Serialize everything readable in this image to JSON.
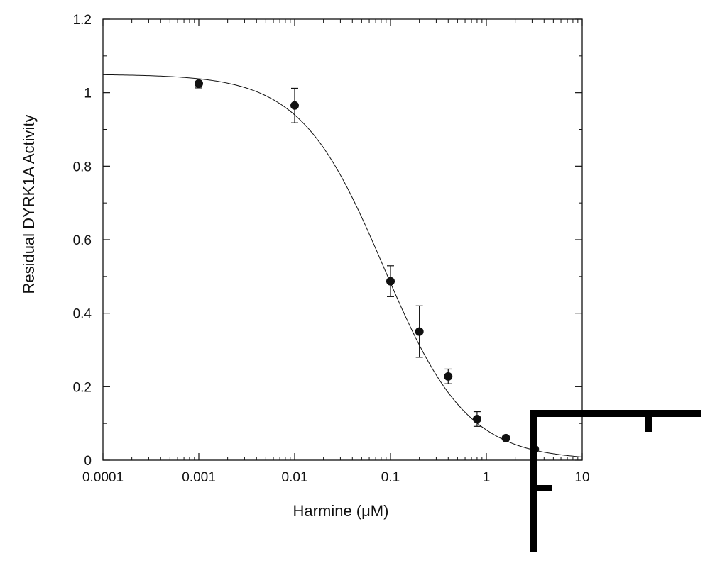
{
  "chart_data": {
    "type": "scatter",
    "xlabel": "Harmine (μM)",
    "ylabel": "Residual DYRK1A  Activity",
    "x_scale": "log",
    "xlim": [
      0.0001,
      10
    ],
    "ylim": [
      0,
      1.2
    ],
    "x_ticks": [
      "0.0001",
      "0.001",
      "0.01",
      "0.1",
      "1",
      "10"
    ],
    "y_ticks": [
      "0",
      "0.2",
      "0.4",
      "0.6",
      "0.8",
      "1",
      "1.2"
    ],
    "grid": false,
    "legend": "none",
    "series": [
      {
        "points": [
          {
            "x": 0.001,
            "y": 1.025,
            "err": 0.012
          },
          {
            "x": 0.01,
            "y": 0.965,
            "err": 0.047
          },
          {
            "x": 0.1,
            "y": 0.487,
            "err": 0.042
          },
          {
            "x": 0.2,
            "y": 0.35,
            "err": 0.07
          },
          {
            "x": 0.4,
            "y": 0.228,
            "err": 0.02
          },
          {
            "x": 0.8,
            "y": 0.112,
            "err": 0.02
          },
          {
            "x": 1.6,
            "y": 0.06,
            "err": 0
          },
          {
            "x": 3.2,
            "y": 0.03,
            "err": 0
          }
        ]
      },
      {
        "type": "line",
        "fit": {
          "top": 1.05,
          "bottom": 0,
          "ic50": 0.085,
          "hill": 1.0
        }
      }
    ]
  }
}
